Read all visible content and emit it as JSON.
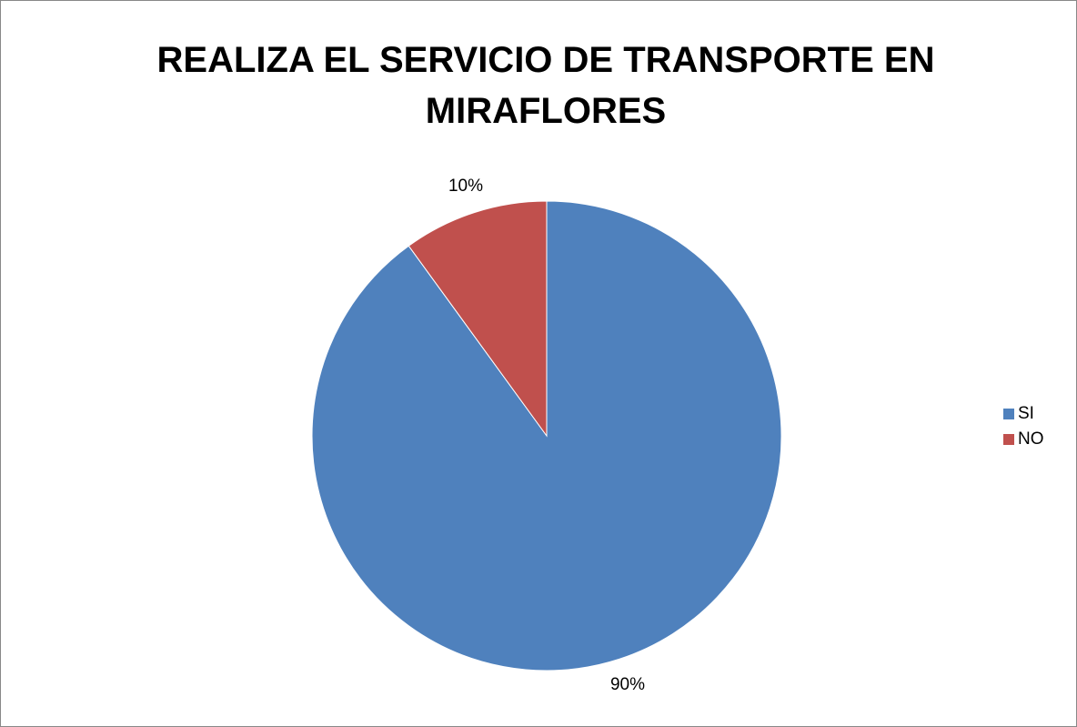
{
  "chart_data": {
    "type": "pie",
    "title": "REALIZA EL SERVICIO DE TRANSPORTE EN MIRAFLORES",
    "categories": [
      "SI",
      "NO"
    ],
    "values": [
      90,
      10
    ],
    "value_labels": [
      "90%",
      "10%"
    ],
    "colors": [
      "#4f81bd",
      "#c0504d"
    ],
    "legend": "right"
  }
}
